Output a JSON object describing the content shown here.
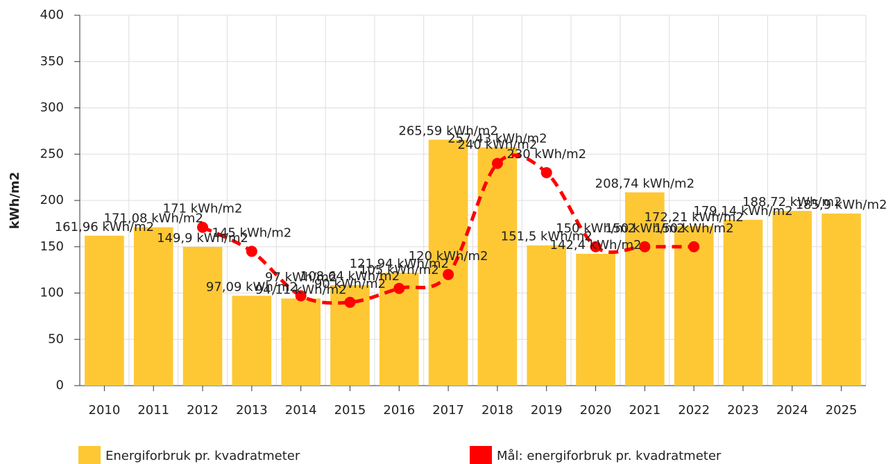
{
  "chart_data": {
    "type": "bar",
    "y_label": "kWh/m2",
    "categories": [
      "2010",
      "2011",
      "2012",
      "2013",
      "2014",
      "2015",
      "2016",
      "2017",
      "2018",
      "2019",
      "2020",
      "2021",
      "2022",
      "2023",
      "2024",
      "2025"
    ],
    "series": [
      {
        "name": "Energiforbruk pr. kvadratmeter",
        "color": "#fec835",
        "type": "bar",
        "values": [
          161.96,
          171.08,
          149.9,
          97.09,
          94.11,
          108.64,
          121.94,
          265.59,
          257.43,
          151.5,
          142.4,
          208.74,
          172.21,
          179.14,
          188.72,
          185.9
        ],
        "value_labels": [
          "161,96 kWh/m2",
          "171,08 kWh/m2",
          "149,9 kWh/m2",
          "97,09 kWh/m2",
          "94,11 kWh/m2",
          "108,64 kWh/m2",
          "121,94 kWh/m2",
          "265,59 kWh/m2",
          "257,43 kWh/m2",
          "151,5 kWh/m2",
          "142,4 kWh/m2",
          "208,74 kWh/m2",
          "172,21 kWh/m2",
          "179,14 kWh/m2",
          "188,72 kWh/m2",
          "185,9 kWh/m2"
        ]
      },
      {
        "name": "Mål: energiforbruk pr. kvadratmeter",
        "color": "#ff0000",
        "type": "line",
        "values": [
          null,
          null,
          171,
          145,
          97,
          90,
          105,
          120,
          240,
          230,
          150,
          150,
          150,
          null,
          null,
          null
        ],
        "value_labels": [
          null,
          null,
          "171 kWh/m2",
          "145 kWh/m2",
          "97 kWh/m2",
          "90 kWh/m2",
          "105 kWh/m2",
          "120 kWh/m2",
          "240 kWh/m2",
          "230 kWh/m2",
          "150 kWh/m2",
          "150 kWh/m2",
          "150 kWh/m2",
          null,
          null,
          null
        ]
      }
    ],
    "ylim": [
      0,
      400
    ],
    "yticks": [
      0,
      50,
      100,
      150,
      200,
      250,
      300,
      350,
      400
    ],
    "grid": true,
    "legend": "bottom"
  }
}
